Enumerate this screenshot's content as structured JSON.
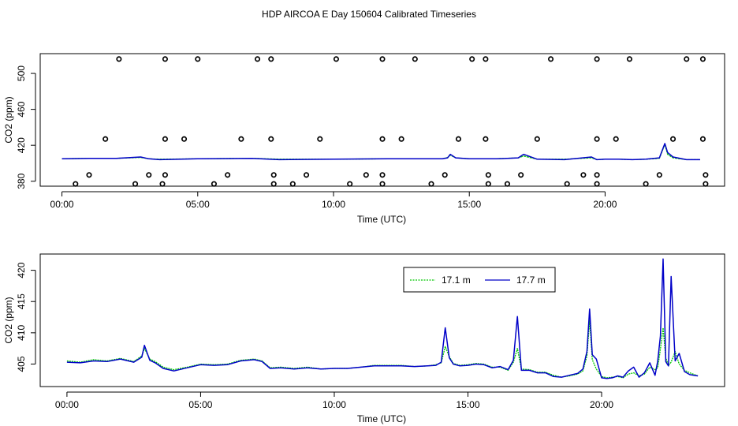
{
  "title": "HDP AIRCOA E  Day 150604  Calibrated Timeseries",
  "colors": {
    "series_17_1": "#00c800",
    "series_17_7": "#0000c8",
    "axes": "#000000"
  },
  "chart_data": [
    {
      "type": "scatter+line",
      "xlabel": "Time (UTC)",
      "ylabel": "CO2 (ppm)",
      "xlim": [
        -0.8,
        24.4
      ],
      "ylim": [
        374.5,
        522
      ],
      "xticks": [
        {
          "v": 0,
          "label": "00:00"
        },
        {
          "v": 5,
          "label": "05:00"
        },
        {
          "v": 10,
          "label": "10:00"
        },
        {
          "v": 15,
          "label": "15:00"
        },
        {
          "v": 20,
          "label": "20:00"
        }
      ],
      "yticks": [
        {
          "v": 380,
          "label": "380"
        },
        {
          "v": 420,
          "label": "420"
        },
        {
          "v": 460,
          "label": "460"
        },
        {
          "v": 500,
          "label": "500"
        }
      ],
      "grid": false,
      "calibration_points": [
        {
          "x": 2.1,
          "y": 516
        },
        {
          "x": 3.8,
          "y": 516
        },
        {
          "x": 5.0,
          "y": 516
        },
        {
          "x": 7.2,
          "y": 516
        },
        {
          "x": 7.7,
          "y": 516
        },
        {
          "x": 10.1,
          "y": 516
        },
        {
          "x": 11.8,
          "y": 516
        },
        {
          "x": 13.0,
          "y": 516
        },
        {
          "x": 15.1,
          "y": 516
        },
        {
          "x": 15.6,
          "y": 516
        },
        {
          "x": 18.0,
          "y": 516
        },
        {
          "x": 19.7,
          "y": 516
        },
        {
          "x": 20.9,
          "y": 516
        },
        {
          "x": 23.0,
          "y": 516
        },
        {
          "x": 23.6,
          "y": 516
        },
        {
          "x": 1.6,
          "y": 427
        },
        {
          "x": 3.8,
          "y": 427
        },
        {
          "x": 4.5,
          "y": 427
        },
        {
          "x": 6.6,
          "y": 427
        },
        {
          "x": 7.7,
          "y": 427
        },
        {
          "x": 9.5,
          "y": 427
        },
        {
          "x": 11.8,
          "y": 427
        },
        {
          "x": 12.5,
          "y": 427
        },
        {
          "x": 14.6,
          "y": 427
        },
        {
          "x": 15.6,
          "y": 427
        },
        {
          "x": 17.5,
          "y": 427
        },
        {
          "x": 19.7,
          "y": 427
        },
        {
          "x": 20.4,
          "y": 427
        },
        {
          "x": 22.5,
          "y": 427
        },
        {
          "x": 23.6,
          "y": 427
        },
        {
          "x": 1.0,
          "y": 387
        },
        {
          "x": 3.2,
          "y": 387
        },
        {
          "x": 3.8,
          "y": 387
        },
        {
          "x": 6.1,
          "y": 387
        },
        {
          "x": 7.8,
          "y": 387
        },
        {
          "x": 9.0,
          "y": 387
        },
        {
          "x": 11.2,
          "y": 387
        },
        {
          "x": 11.8,
          "y": 387
        },
        {
          "x": 14.1,
          "y": 387
        },
        {
          "x": 15.7,
          "y": 387
        },
        {
          "x": 16.9,
          "y": 387
        },
        {
          "x": 19.2,
          "y": 387
        },
        {
          "x": 19.7,
          "y": 387
        },
        {
          "x": 22.0,
          "y": 387
        },
        {
          "x": 23.7,
          "y": 387
        },
        {
          "x": 0.5,
          "y": 377
        },
        {
          "x": 2.7,
          "y": 377
        },
        {
          "x": 3.7,
          "y": 377
        },
        {
          "x": 5.6,
          "y": 377
        },
        {
          "x": 7.8,
          "y": 377
        },
        {
          "x": 8.5,
          "y": 377
        },
        {
          "x": 10.6,
          "y": 377
        },
        {
          "x": 11.8,
          "y": 377
        },
        {
          "x": 13.6,
          "y": 377
        },
        {
          "x": 15.7,
          "y": 377
        },
        {
          "x": 16.4,
          "y": 377
        },
        {
          "x": 18.6,
          "y": 377
        },
        {
          "x": 19.7,
          "y": 377
        },
        {
          "x": 21.5,
          "y": 377
        },
        {
          "x": 23.7,
          "y": 377
        }
      ],
      "series": [
        {
          "color_key": "series_17_1",
          "x": [
            0,
            1,
            2,
            2.9,
            3.2,
            3.6,
            5,
            7,
            8,
            10,
            12,
            14,
            14.2,
            14.3,
            14.5,
            15,
            16,
            16.8,
            17,
            17.5,
            18.5,
            19.5,
            19.7,
            20,
            20.5,
            21,
            21.5,
            22,
            22.2,
            22.3,
            22.5,
            23,
            23.5
          ],
          "y": [
            405,
            405.5,
            405.5,
            406.5,
            405,
            404.5,
            405,
            405.5,
            404.5,
            404.5,
            405,
            405,
            406.5,
            409,
            406,
            405,
            405,
            406,
            408,
            404.5,
            404.5,
            406,
            404,
            404.5,
            404.5,
            404,
            404.5,
            405.5,
            421,
            410,
            406,
            404,
            404
          ]
        },
        {
          "color_key": "series_17_7",
          "x": [
            0,
            1,
            2,
            2.9,
            3.2,
            3.6,
            5,
            7,
            8,
            10,
            12,
            14,
            14.2,
            14.3,
            14.5,
            15,
            16,
            16.8,
            17,
            17.5,
            18.5,
            19.5,
            19.7,
            20,
            20.5,
            21,
            21.5,
            22,
            22.2,
            22.3,
            22.5,
            23,
            23.5
          ],
          "y": [
            405,
            405.5,
            405.5,
            407,
            405,
            404,
            405,
            405.5,
            404,
            404.5,
            405,
            405,
            406,
            410,
            406,
            405,
            405,
            406,
            410,
            404.5,
            404,
            407,
            404,
            404.5,
            404.5,
            404,
            404.5,
            406,
            422,
            412,
            407,
            404,
            404
          ]
        }
      ]
    },
    {
      "type": "line",
      "xlabel": "Time (UTC)",
      "ylabel": "CO2 (ppm)",
      "xlim": [
        -1.0,
        24.6
      ],
      "ylim": [
        401.4,
        422.6
      ],
      "xticks": [
        {
          "v": 0,
          "label": "00:00"
        },
        {
          "v": 5,
          "label": "05:00"
        },
        {
          "v": 10,
          "label": "10:00"
        },
        {
          "v": 15,
          "label": "15:00"
        },
        {
          "v": 20,
          "label": "20:00"
        }
      ],
      "yticks": [
        {
          "v": 405,
          "label": "405"
        },
        {
          "v": 410,
          "label": "410"
        },
        {
          "v": 415,
          "label": "415"
        },
        {
          "v": 420,
          "label": "420"
        }
      ],
      "grid": false,
      "legend": {
        "position": "top-right",
        "entries": [
          "17.1 m",
          "17.7 m"
        ]
      },
      "series": [
        {
          "name": "17.1 m",
          "color_key": "series_17_1",
          "x": [
            0,
            0.5,
            1.0,
            1.5,
            2.0,
            2.5,
            2.8,
            2.9,
            3.1,
            3.3,
            3.6,
            4.0,
            4.5,
            5.0,
            5.5,
            6.0,
            6.5,
            7.0,
            7.3,
            7.6,
            8.0,
            8.5,
            9.0,
            9.5,
            10.0,
            10.5,
            11.0,
            11.5,
            12.0,
            12.5,
            13.0,
            13.5,
            13.8,
            14.0,
            14.15,
            14.3,
            14.45,
            14.7,
            15.0,
            15.3,
            15.6,
            15.9,
            16.2,
            16.5,
            16.7,
            16.85,
            17.0,
            17.3,
            17.6,
            17.9,
            18.2,
            18.5,
            18.8,
            19.1,
            19.3,
            19.45,
            19.55,
            19.65,
            19.8,
            20.0,
            20.2,
            20.4,
            20.6,
            20.8,
            21.0,
            21.2,
            21.4,
            21.6,
            21.8,
            22.0,
            22.1,
            22.2,
            22.3,
            22.4,
            22.5,
            22.6,
            22.75,
            22.9,
            23.1,
            23.3,
            23.6
          ],
          "y": [
            405.5,
            405.3,
            405.7,
            405.5,
            405.9,
            405.4,
            406.3,
            407.5,
            405.8,
            405.4,
            404.5,
            404.1,
            404.5,
            405.0,
            404.9,
            405.0,
            405.6,
            405.8,
            405.5,
            404.4,
            404.5,
            404.3,
            404.5,
            404.2,
            404.3,
            404.3,
            404.5,
            404.8,
            404.8,
            404.8,
            404.6,
            404.7,
            404.9,
            405.2,
            407.8,
            406.2,
            405.1,
            404.8,
            404.9,
            405.1,
            405.0,
            404.5,
            404.5,
            404.0,
            405.3,
            407.5,
            404.2,
            404.1,
            403.7,
            403.7,
            403.2,
            402.9,
            403.1,
            403.4,
            403.9,
            406.3,
            412.0,
            405.7,
            404.2,
            403.0,
            402.8,
            402.9,
            403.0,
            402.8,
            403.4,
            403.6,
            403.1,
            403.4,
            404.5,
            404.1,
            404.4,
            407.4,
            410.8,
            406.0,
            404.8,
            405.3,
            407.0,
            405.0,
            404.0,
            403.6,
            403.1
          ]
        },
        {
          "name": "17.7 m",
          "color_key": "series_17_7",
          "x": [
            0,
            0.5,
            1.0,
            1.5,
            2.0,
            2.5,
            2.8,
            2.9,
            3.1,
            3.3,
            3.6,
            4.0,
            4.5,
            5.0,
            5.5,
            6.0,
            6.5,
            7.0,
            7.3,
            7.6,
            8.0,
            8.5,
            9.0,
            9.5,
            10.0,
            10.5,
            11.0,
            11.5,
            12.0,
            12.5,
            13.0,
            13.5,
            13.8,
            14.0,
            14.15,
            14.3,
            14.45,
            14.7,
            15.0,
            15.3,
            15.6,
            15.9,
            16.2,
            16.5,
            16.7,
            16.85,
            17.0,
            17.3,
            17.6,
            17.9,
            18.2,
            18.5,
            18.8,
            19.1,
            19.3,
            19.45,
            19.55,
            19.65,
            19.8,
            20.0,
            20.2,
            20.4,
            20.6,
            20.8,
            21.0,
            21.2,
            21.4,
            21.6,
            21.8,
            22.0,
            22.1,
            22.2,
            22.3,
            22.4,
            22.5,
            22.6,
            22.75,
            22.9,
            23.1,
            23.3,
            23.6
          ],
          "y": [
            405.3,
            405.2,
            405.5,
            405.4,
            405.8,
            405.3,
            406.1,
            408.0,
            405.6,
            405.2,
            404.3,
            403.9,
            404.4,
            404.9,
            404.8,
            404.9,
            405.5,
            405.7,
            405.4,
            404.3,
            404.4,
            404.2,
            404.4,
            404.2,
            404.3,
            404.3,
            404.5,
            404.7,
            404.7,
            404.7,
            404.6,
            404.7,
            404.8,
            405.3,
            410.8,
            406.0,
            405.0,
            404.7,
            404.8,
            405.0,
            404.9,
            404.4,
            404.6,
            404.1,
            405.6,
            412.6,
            404.0,
            404.0,
            403.6,
            403.6,
            403.0,
            402.9,
            403.2,
            403.5,
            404.2,
            407.0,
            413.8,
            406.5,
            405.8,
            402.8,
            402.7,
            402.8,
            403.1,
            402.9,
            403.9,
            404.5,
            402.9,
            403.6,
            405.2,
            403.2,
            405.5,
            409.5,
            421.8,
            405.4,
            404.7,
            419.0,
            405.5,
            406.7,
            403.8,
            403.3,
            403.1
          ]
        }
      ]
    }
  ]
}
